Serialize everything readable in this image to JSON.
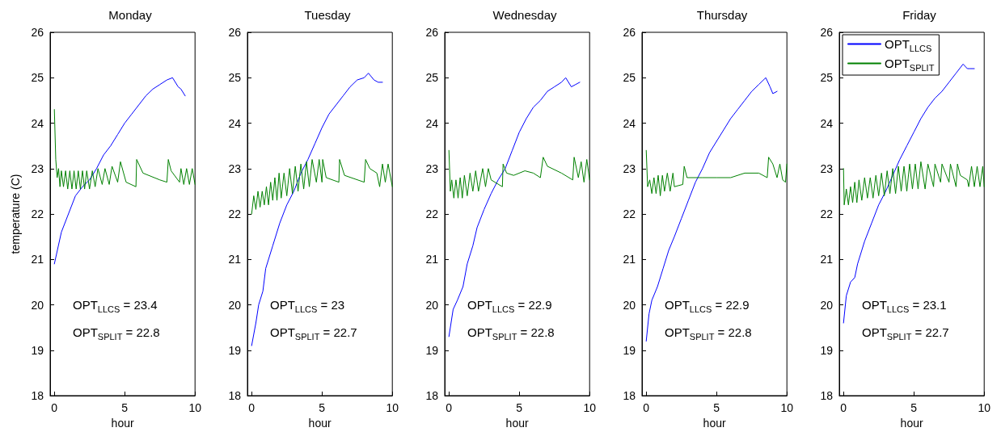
{
  "chart_data": [
    {
      "type": "line",
      "title": "Monday",
      "xlabel": "hour",
      "ylabel": "temperature (C)",
      "xlim": [
        -0.3,
        10
      ],
      "xticks": [
        0,
        5,
        10
      ],
      "ylim": [
        18,
        26
      ],
      "yticks": [
        18,
        19,
        20,
        21,
        22,
        23,
        24,
        25,
        26
      ],
      "grid": false,
      "legend": false,
      "annotations": [
        "OPT$_{LLCS}$ = 23.4",
        "OPT$_{SPLIT}$ = 22.8"
      ],
      "series": [
        {
          "color": "#0000ff",
          "marker": "none",
          "x": [
            0,
            0.5,
            1,
            1.5,
            2,
            2.5,
            3,
            3.5,
            4,
            4.5,
            5,
            5.5,
            6,
            6.5,
            7,
            7.5,
            8,
            8.4,
            8.8,
            9,
            9.3
          ],
          "values": [
            20.9,
            21.6,
            22.0,
            22.4,
            22.6,
            22.75,
            23.0,
            23.3,
            23.5,
            23.75,
            24.0,
            24.2,
            24.4,
            24.6,
            24.75,
            24.85,
            24.95,
            25.0,
            24.8,
            24.75,
            24.6
          ]
        },
        {
          "color": "#008000",
          "marker": "none",
          "x": [
            0,
            0.1,
            0.2,
            0.3,
            0.4,
            0.5,
            0.65,
            0.8,
            0.95,
            1.1,
            1.25,
            1.4,
            1.55,
            1.7,
            1.85,
            2.0,
            2.15,
            2.3,
            2.5,
            2.7,
            2.9,
            3.1,
            3.4,
            3.6,
            3.9,
            4.1,
            4.5,
            4.7,
            5.1,
            5.8,
            5.85,
            6.3,
            7.5,
            8.0,
            8.1,
            8.3,
            8.9,
            9.0,
            9.2,
            9.4,
            9.6,
            9.8,
            10
          ],
          "values": [
            24.3,
            23.2,
            22.8,
            23.0,
            22.6,
            22.95,
            22.6,
            22.95,
            22.55,
            22.95,
            22.55,
            22.95,
            22.55,
            22.95,
            22.55,
            22.95,
            22.55,
            22.95,
            22.55,
            22.95,
            22.6,
            23.0,
            22.65,
            23.0,
            22.65,
            23.05,
            22.7,
            23.15,
            22.7,
            22.6,
            23.2,
            22.9,
            22.75,
            22.7,
            23.2,
            22.95,
            22.7,
            23.0,
            22.65,
            23.0,
            22.65,
            23.0,
            22.65
          ]
        }
      ]
    },
    {
      "type": "line",
      "title": "Tuesday",
      "xlabel": "hour",
      "xlim": [
        -0.3,
        10
      ],
      "xticks": [
        0,
        5,
        10
      ],
      "ylim": [
        18,
        26
      ],
      "yticks": [
        18,
        19,
        20,
        21,
        22,
        23,
        24,
        25,
        26
      ],
      "grid": false,
      "legend": false,
      "annotations": [
        "OPT$_{LLCS}$ = 23",
        "OPT$_{SPLIT}$ = 22.7"
      ],
      "series": [
        {
          "color": "#0000ff",
          "marker": "none",
          "x": [
            0,
            0.3,
            0.5,
            0.8,
            1,
            1.5,
            2,
            2.5,
            3,
            3.5,
            4,
            4.5,
            5,
            5.5,
            6,
            6.5,
            7,
            7.5,
            8,
            8.3,
            8.7,
            9,
            9.3
          ],
          "values": [
            19.1,
            19.6,
            20.0,
            20.3,
            20.8,
            21.3,
            21.8,
            22.2,
            22.5,
            22.9,
            23.2,
            23.55,
            23.9,
            24.2,
            24.4,
            24.6,
            24.8,
            24.95,
            25.0,
            25.1,
            24.95,
            24.9,
            24.9
          ]
        },
        {
          "color": "#008000",
          "marker": "none",
          "x": [
            0,
            0.15,
            0.3,
            0.45,
            0.6,
            0.75,
            0.9,
            1.05,
            1.2,
            1.35,
            1.5,
            1.65,
            1.8,
            1.95,
            2.1,
            2.3,
            2.5,
            2.7,
            2.9,
            3.1,
            3.3,
            3.5,
            3.7,
            3.9,
            4.1,
            4.3,
            4.6,
            4.8,
            5.0,
            5.05,
            5.3,
            6.2,
            6.25,
            6.6,
            8.0,
            8.1,
            8.4,
            8.9,
            9.1,
            9.3,
            9.5,
            9.7,
            10
          ],
          "values": [
            22.0,
            22.4,
            22.1,
            22.5,
            22.15,
            22.5,
            22.2,
            22.6,
            22.2,
            22.7,
            22.3,
            22.8,
            22.3,
            22.9,
            22.35,
            22.9,
            22.4,
            23.0,
            22.45,
            23.05,
            22.5,
            23.1,
            22.55,
            23.15,
            22.6,
            23.2,
            22.7,
            23.2,
            22.7,
            23.2,
            22.8,
            22.7,
            23.2,
            22.85,
            22.7,
            23.2,
            23.0,
            22.9,
            22.6,
            23.1,
            22.7,
            23.1,
            22.6
          ]
        }
      ]
    },
    {
      "type": "line",
      "title": "Wednesday",
      "xlabel": "hour",
      "xlim": [
        -0.3,
        10
      ],
      "xticks": [
        0,
        5,
        10
      ],
      "ylim": [
        18,
        26
      ],
      "yticks": [
        18,
        19,
        20,
        21,
        22,
        23,
        24,
        25,
        26
      ],
      "grid": false,
      "legend": false,
      "annotations": [
        "OPT$_{LLCS}$ = 22.9",
        "OPT$_{SPLIT}$ = 22.8"
      ],
      "series": [
        {
          "color": "#0000ff",
          "marker": "none",
          "x": [
            0,
            0.3,
            0.6,
            1,
            1.3,
            1.7,
            2,
            2.5,
            3,
            3.5,
            4,
            4.5,
            5,
            5.5,
            6,
            6.5,
            7,
            7.5,
            8,
            8.3,
            8.7,
            9,
            9.3
          ],
          "values": [
            19.3,
            19.9,
            20.1,
            20.4,
            20.9,
            21.3,
            21.7,
            22.1,
            22.45,
            22.75,
            23.0,
            23.4,
            23.8,
            24.1,
            24.35,
            24.5,
            24.7,
            24.8,
            24.9,
            25.0,
            24.8,
            24.85,
            24.9
          ]
        },
        {
          "color": "#008000",
          "marker": "none",
          "x": [
            0,
            0.1,
            0.2,
            0.35,
            0.5,
            0.65,
            0.8,
            0.95,
            1.1,
            1.3,
            1.5,
            1.7,
            1.9,
            2.1,
            2.4,
            2.6,
            2.8,
            3.0,
            3.8,
            3.85,
            4.1,
            4.6,
            5.4,
            6.0,
            6.5,
            6.7,
            7.0,
            8.0,
            8.8,
            8.9,
            9.2,
            9.4,
            9.6,
            9.8,
            10
          ],
          "values": [
            23.4,
            22.5,
            22.75,
            22.35,
            22.75,
            22.35,
            22.8,
            22.35,
            22.85,
            22.4,
            22.9,
            22.5,
            22.95,
            22.5,
            23.0,
            22.6,
            23.0,
            22.75,
            22.6,
            23.1,
            22.9,
            22.85,
            22.95,
            22.9,
            22.8,
            23.25,
            23.05,
            22.9,
            22.75,
            23.25,
            22.8,
            23.15,
            22.7,
            23.2,
            22.75
          ]
        }
      ]
    },
    {
      "type": "line",
      "title": "Thursday",
      "xlabel": "hour",
      "xlim": [
        -0.3,
        10
      ],
      "xticks": [
        0,
        5,
        10
      ],
      "ylim": [
        18,
        26
      ],
      "yticks": [
        18,
        19,
        20,
        21,
        22,
        23,
        24,
        25,
        26
      ],
      "grid": false,
      "legend": false,
      "annotations": [
        "OPT$_{LLCS}$ = 22.9",
        "OPT$_{SPLIT}$ = 22.8"
      ],
      "series": [
        {
          "color": "#0000ff",
          "marker": "none",
          "x": [
            0,
            0.2,
            0.4,
            0.8,
            1.2,
            1.6,
            2,
            2.5,
            3,
            3.5,
            4,
            4.5,
            5,
            5.5,
            6,
            6.5,
            7,
            7.5,
            8,
            8.5,
            8.8,
            9,
            9.3
          ],
          "values": [
            19.2,
            19.8,
            20.1,
            20.4,
            20.8,
            21.2,
            21.5,
            21.9,
            22.3,
            22.7,
            23.0,
            23.35,
            23.6,
            23.85,
            24.1,
            24.3,
            24.5,
            24.7,
            24.85,
            25.0,
            24.8,
            24.65,
            24.7
          ]
        },
        {
          "color": "#008000",
          "marker": "none",
          "x": [
            0,
            0.1,
            0.25,
            0.4,
            0.55,
            0.7,
            0.85,
            1.0,
            1.15,
            1.3,
            1.5,
            1.7,
            1.9,
            2.0,
            2.6,
            2.7,
            2.9,
            4.0,
            5.0,
            6.0,
            7.0,
            8.0,
            8.6,
            8.7,
            9.0,
            9.3,
            9.5,
            9.7,
            9.9,
            10
          ],
          "values": [
            23.4,
            22.6,
            22.75,
            22.45,
            22.8,
            22.45,
            22.85,
            22.4,
            22.85,
            22.5,
            22.9,
            22.5,
            22.9,
            22.6,
            22.65,
            23.05,
            22.8,
            22.8,
            22.8,
            22.8,
            22.9,
            22.9,
            22.8,
            23.25,
            23.1,
            22.8,
            23.1,
            22.75,
            22.7,
            23.1
          ]
        }
      ]
    },
    {
      "type": "line",
      "title": "Friday",
      "xlabel": "hour",
      "xlim": [
        -0.3,
        10
      ],
      "xticks": [
        0,
        5,
        10
      ],
      "ylim": [
        18,
        26
      ],
      "yticks": [
        18,
        19,
        20,
        21,
        22,
        23,
        24,
        25,
        26
      ],
      "grid": false,
      "legend": "top left",
      "annotations": [
        "OPT$_{LLCS}$ = 23.1",
        "OPT$_{SPLIT}$ = 22.7"
      ],
      "series": [
        {
          "name": "OPT$_{LLCS}$",
          "color": "#0000ff",
          "marker": "none",
          "x": [
            0,
            0.2,
            0.5,
            0.8,
            1,
            1.5,
            2,
            2.5,
            3,
            3.5,
            4,
            4.5,
            5,
            5.5,
            6,
            6.5,
            7,
            7.5,
            8,
            8.5,
            8.8,
            9,
            9.3
          ],
          "values": [
            19.6,
            20.2,
            20.5,
            20.6,
            20.9,
            21.4,
            21.8,
            22.2,
            22.5,
            22.85,
            23.2,
            23.5,
            23.8,
            24.1,
            24.35,
            24.55,
            24.7,
            24.9,
            25.1,
            25.3,
            25.2,
            25.2,
            25.2
          ]
        },
        {
          "name": "OPT$_{SPLIT}$",
          "color": "#008000",
          "marker": "none",
          "x": [
            0,
            0.05,
            0.2,
            0.35,
            0.5,
            0.65,
            0.8,
            0.95,
            1.1,
            1.3,
            1.5,
            1.7,
            1.9,
            2.1,
            2.3,
            2.5,
            2.7,
            2.9,
            3.1,
            3.3,
            3.5,
            3.7,
            3.9,
            4.1,
            4.3,
            4.5,
            4.7,
            4.9,
            5.1,
            5.3,
            5.5,
            5.8,
            6.0,
            6.4,
            6.5,
            6.9,
            7.0,
            7.5,
            7.6,
            8.0,
            8.1,
            8.3,
            8.8,
            8.9,
            9.1,
            9.3,
            9.5,
            9.7,
            9.9,
            10
          ],
          "values": [
            23.0,
            22.2,
            22.55,
            22.2,
            22.6,
            22.25,
            22.7,
            22.25,
            22.75,
            22.3,
            22.8,
            22.35,
            22.8,
            22.35,
            22.85,
            22.4,
            22.9,
            22.4,
            22.95,
            22.45,
            23.0,
            22.45,
            23.05,
            22.5,
            23.05,
            22.5,
            23.1,
            22.55,
            23.1,
            22.55,
            23.15,
            22.55,
            23.1,
            22.6,
            23.1,
            22.7,
            23.1,
            22.7,
            23.1,
            22.6,
            23.1,
            22.85,
            22.75,
            22.6,
            23.05,
            22.6,
            23.05,
            22.6,
            23.05,
            22.6
          ]
        }
      ]
    }
  ]
}
